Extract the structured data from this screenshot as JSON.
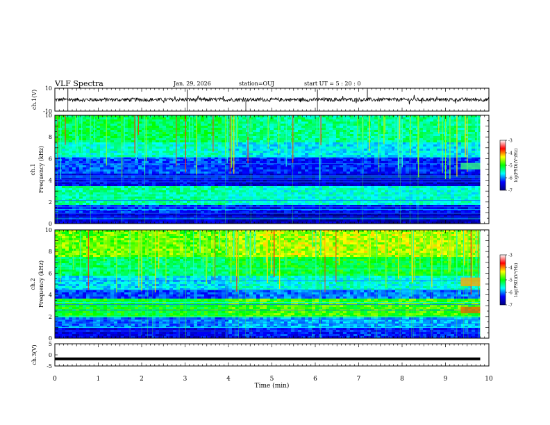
{
  "header": {
    "title": "VLF Spectra",
    "date": "Jan. 29, 2026",
    "station": "station=OUJ",
    "start_time": "start UT =  5 : 20 : 0"
  },
  "chart_data": [
    {
      "type": "line",
      "panel": "ch1-waveform",
      "ylabel": "ch.1(V)",
      "ylim": [
        -10,
        10
      ],
      "yticks": [
        "10",
        "-10"
      ],
      "xlim": [
        0,
        10
      ],
      "baseline": 0
    },
    {
      "type": "heatmap",
      "panel": "ch1-spectrogram",
      "ylabel_lines": [
        "ch.1",
        "Frequency (kHz)"
      ],
      "ylim": [
        0,
        10
      ],
      "yticks": [
        "0",
        "2",
        "4",
        "6",
        "8",
        "10"
      ],
      "xlim": [
        0,
        10
      ],
      "colorbar": {
        "label": "log(PSD)(V²/Hz)",
        "range": [
          -7,
          -3
        ],
        "ticks": [
          "-3",
          "-4",
          "-5",
          "-6",
          "-7"
        ],
        "colors": [
          "#000080",
          "#0000ff",
          "#00ffff",
          "#00ff00",
          "#ffff00",
          "#ff0000",
          "#ffffff"
        ]
      }
    },
    {
      "type": "heatmap",
      "panel": "ch2-spectrogram",
      "ylabel_lines": [
        "ch.2",
        "Frequency (kHz)"
      ],
      "ylim": [
        0,
        10
      ],
      "yticks": [
        "0",
        "2",
        "4",
        "6",
        "8",
        "10"
      ],
      "xlim": [
        0,
        10
      ],
      "colorbar": {
        "label": "log(PSD)(V²/Hz)",
        "range": [
          -7,
          -3
        ],
        "ticks": [
          "-3",
          "-4",
          "-5",
          "-6",
          "-7"
        ],
        "colors": [
          "#000080",
          "#0000ff",
          "#00ffff",
          "#00ff00",
          "#ffff00",
          "#ff0000",
          "#ffffff"
        ]
      }
    },
    {
      "type": "line",
      "panel": "ch3-waveform",
      "ylabel": "ch.3(V)",
      "ylim": [
        -5,
        5
      ],
      "yticks": [
        "5",
        "0",
        "-5"
      ],
      "xlim": [
        0,
        10
      ],
      "constant_value": -1.8
    }
  ],
  "xaxis": {
    "label": "Time (min)",
    "ticks": [
      "0",
      "1",
      "2",
      "3",
      "4",
      "5",
      "6",
      "7",
      "8",
      "9",
      "10"
    ]
  }
}
